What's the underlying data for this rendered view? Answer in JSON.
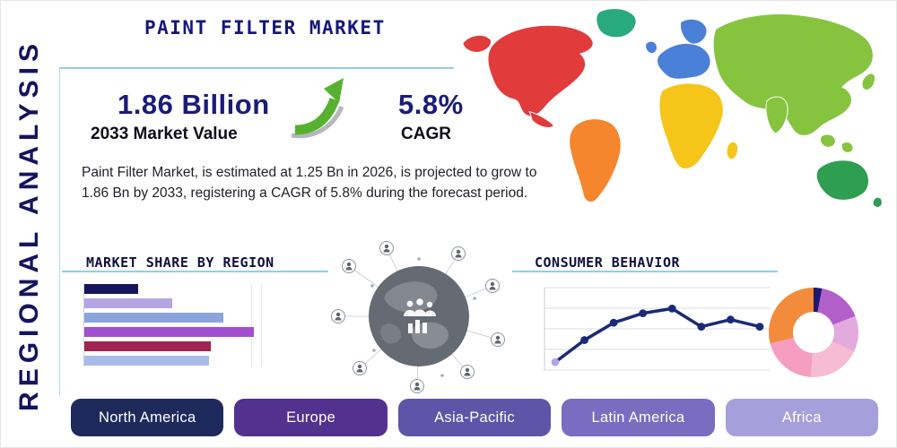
{
  "page": {
    "title": "PAINT FILTER MARKET",
    "side_label": "REGIONAL ANALYSIS",
    "description": "Paint Filter Market, is estimated at 1.25 Bn in 2026, is projected to grow to 1.86 Bn by 2033, registering a CAGR of 5.8% during the forecast period."
  },
  "stats": {
    "market_value": "1.86 Billion",
    "market_value_label": "2033 Market Value",
    "cagr_value": "5.8%",
    "cagr_label": "CAGR"
  },
  "sections": {
    "market_share_title": "MARKET SHARE BY REGION",
    "consumer_behavior_title": "CONSUMER BEHAVIOR"
  },
  "region_buttons": [
    {
      "label": "North America",
      "color": "#1e2a5c"
    },
    {
      "label": "Europe",
      "color": "#53318e"
    },
    {
      "label": "Asia-Pacific",
      "color": "#5e55a8"
    },
    {
      "label": "Latin America",
      "color": "#7a6cc0"
    },
    {
      "label": "Africa",
      "color": "#a79fdb"
    }
  ],
  "map_colors": {
    "alaska": "#e23b3b",
    "north_america": "#e23b3b",
    "central_america": "#e23b3b",
    "greenland": "#28a97e",
    "south_america": "#f5862e",
    "uk": "#4a80d8",
    "scandinavia": "#4a80d8",
    "europe": "#4a80d8",
    "africa": "#f6c51a",
    "madagascar": "#f6c51a",
    "asia": "#86c440",
    "india": "#86c440",
    "japan": "#86c440",
    "se_asia_1": "#86c440",
    "se_asia_2": "#86c440",
    "australia": "#2e9e50",
    "new_zealand": "#2e9e50"
  },
  "colors": {
    "accent_line": "#8ed1e4",
    "heading_navy": "#17177a",
    "arrow_green": "#57b12e"
  },
  "chart_data": [
    {
      "type": "bar",
      "title": "MARKET SHARE BY REGION",
      "orientation": "horizontal",
      "values": [
        30,
        49,
        78,
        95,
        71,
        70
      ],
      "unit": "relative share (axis unlabeled)",
      "colors": [
        "#16165c",
        "#b3a6e3",
        "#8ba4dd",
        "#a14fd0",
        "#a12450",
        "#a9bbe8"
      ],
      "grid": true
    },
    {
      "type": "line",
      "title": "CONSUMER BEHAVIOR",
      "x": [
        1,
        2,
        3,
        4,
        5,
        6,
        7,
        8
      ],
      "values": [
        10,
        38,
        60,
        72,
        78,
        55,
        64,
        55
      ],
      "ylim": [
        0,
        100
      ],
      "grid": true,
      "line_color": "#1b2a78",
      "first_marker_color": "#b3a4e6"
    },
    {
      "type": "pie",
      "donut": true,
      "title": "Regional distribution donut",
      "slices": [
        {
          "label": "slice-navy",
          "value": 3,
          "color": "#1a1a6e"
        },
        {
          "label": "slice-purple",
          "value": 16,
          "color": "#b35fc9"
        },
        {
          "label": "slice-lavender",
          "value": 13,
          "color": "#e3aade"
        },
        {
          "label": "slice-light-pink",
          "value": 19,
          "color": "#f6bcd4"
        },
        {
          "label": "slice-pink",
          "value": 20,
          "color": "#f59ec2"
        },
        {
          "label": "slice-orange",
          "value": 29,
          "color": "#f28c3c"
        }
      ]
    }
  ]
}
